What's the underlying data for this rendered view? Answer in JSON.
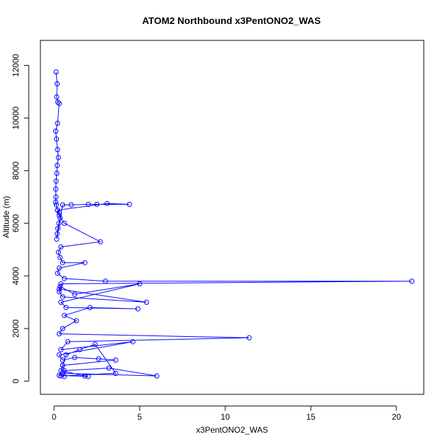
{
  "chart_data": {
    "type": "scatter",
    "title": "ATOM2 Northbound x3PentONO2_WAS",
    "xlabel": "x3PentONO2_WAS",
    "ylabel": "Altitude (m)",
    "xlim": [
      -0.8,
      21.6
    ],
    "ylim": [
      -500,
      12950
    ],
    "xticks": [
      "0",
      "5",
      "10",
      "15",
      "20"
    ],
    "yticks": [
      "0",
      "2000",
      "4000",
      "6000",
      "8000",
      "10000",
      "12000"
    ],
    "grid": false,
    "legend": "none",
    "marker": "open-circle",
    "connected": true,
    "series_color": "#0000ff",
    "series": [
      {
        "x": [
          0.12,
          0.18,
          0.15,
          0.22,
          0.3,
          0.2,
          0.1,
          0.14,
          0.2,
          0.25,
          0.18,
          0.16,
          0.12,
          0.1,
          0.11,
          0.09,
          0.13,
          0.2,
          0.3,
          0.35,
          0.28,
          0.22,
          0.18,
          0.15,
          0.5,
          1.0,
          2.0,
          2.5,
          4.4,
          3.1,
          0.2,
          0.3,
          0.6,
          2.7,
          0.4,
          0.25,
          0.35,
          0.5,
          1.8,
          0.3,
          0.2,
          0.6,
          3.0,
          20.9,
          0.4,
          0.3,
          5.4,
          0.5,
          0.3,
          0.35,
          1.2,
          5.0,
          0.4,
          0.7,
          4.9,
          2.1,
          0.6,
          1.3,
          0.5,
          0.3,
          11.4,
          0.8,
          0.4,
          4.6,
          0.3,
          0.5,
          1.2,
          2.6,
          3.6,
          0.5,
          0.6,
          3.2,
          6.0,
          0.5,
          0.3,
          2.0,
          1.8,
          0.4,
          0.5,
          0.7,
          1.5,
          2.4,
          3.6,
          0.4,
          0.6
        ],
        "y": [
          11750,
          11300,
          10800,
          10600,
          10550,
          9800,
          9500,
          9200,
          8800,
          8500,
          8200,
          7900,
          7600,
          7300,
          7000,
          6800,
          6700,
          6500,
          6400,
          6200,
          6000,
          5800,
          5600,
          5400,
          6700,
          6700,
          6720,
          6720,
          6720,
          6750,
          6500,
          6300,
          6000,
          5300,
          5100,
          4900,
          4700,
          4500,
          4500,
          4300,
          4100,
          3900,
          3800,
          3800,
          3700,
          3500,
          3000,
          3200,
          3400,
          3600,
          3300,
          3700,
          3000,
          2800,
          2750,
          2800,
          2500,
          2300,
          2000,
          1800,
          1650,
          1500,
          1200,
          1500,
          1000,
          800,
          900,
          850,
          800,
          600,
          400,
          500,
          200,
          300,
          220,
          180,
          200,
          400,
          600,
          1000,
          1200,
          1400,
          300,
          200,
          180
        ]
      }
    ]
  }
}
